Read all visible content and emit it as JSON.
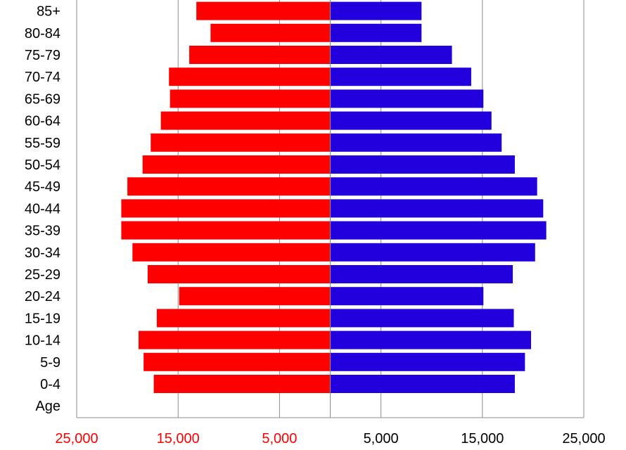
{
  "chart_data": {
    "type": "bar",
    "orientation": "horizontal-population-pyramid",
    "category_axis_label": "Age",
    "categories": [
      "0-4",
      "5-9",
      "10-14",
      "15-19",
      "20-24",
      "25-29",
      "30-34",
      "35-39",
      "40-44",
      "45-49",
      "50-54",
      "55-59",
      "60-64",
      "65-69",
      "70-74",
      "75-79",
      "80-84",
      "85+"
    ],
    "series": [
      {
        "side": "left",
        "color": "#ff0000",
        "values": [
          17400,
          18400,
          18900,
          17100,
          14900,
          18000,
          19500,
          20600,
          20600,
          20000,
          18500,
          17700,
          16700,
          15800,
          15900,
          13900,
          11800,
          13200
        ]
      },
      {
        "side": "right",
        "color": "#2200dd",
        "values": [
          18200,
          19200,
          19800,
          18100,
          15100,
          18000,
          20200,
          21300,
          21000,
          20400,
          18200,
          16900,
          15900,
          15100,
          13900,
          12000,
          9000,
          9000
        ]
      }
    ],
    "xlim": [
      -25000,
      25000
    ],
    "x_ticks": [
      {
        "value": -25000,
        "label": "25,000",
        "color": "#ff0000"
      },
      {
        "value": -15000,
        "label": "15,000",
        "color": "#ff0000"
      },
      {
        "value": -5000,
        "label": "5,000",
        "color": "#ff0000"
      },
      {
        "value": 5000,
        "label": "5,000",
        "color": "#000000"
      },
      {
        "value": 15000,
        "label": "15,000",
        "color": "#000000"
      },
      {
        "value": 25000,
        "label": "25,000",
        "color": "#000000"
      }
    ],
    "grid": true
  }
}
